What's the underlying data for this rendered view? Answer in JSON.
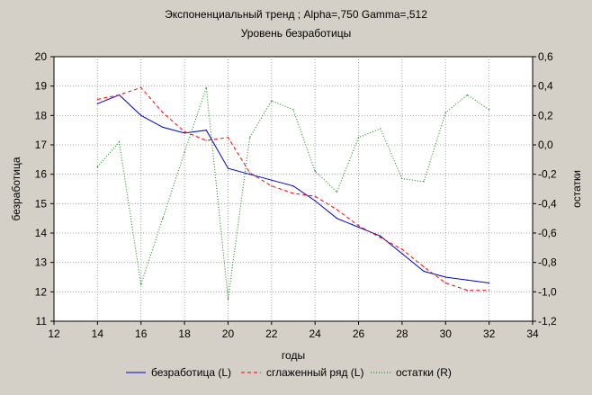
{
  "chart_data": {
    "type": "line",
    "title": "Экспоненциальный тренд ; Alpha=,750 Gamma=,512",
    "subtitle": "Уровень безработицы",
    "xlabel": "годы",
    "ylabel_left": "безработица",
    "ylabel_right": "остатки",
    "xlim": [
      12,
      34
    ],
    "ylim_left": [
      11,
      20
    ],
    "ylim_right": [
      -1.2,
      0.6
    ],
    "x_ticks": [
      "12",
      "14",
      "16",
      "18",
      "20",
      "22",
      "24",
      "26",
      "28",
      "30",
      "32",
      "34"
    ],
    "y_left_ticks": [
      "11",
      "12",
      "13",
      "14",
      "15",
      "16",
      "17",
      "18",
      "19",
      "20"
    ],
    "y_right_ticks": [
      "-1,2",
      "-1,0",
      "-0,8",
      "-0,6",
      "-0,4",
      "-0,2",
      "0,0",
      "0,2",
      "0,4",
      "0,6"
    ],
    "grid": true,
    "legend_position": "bottom",
    "series": [
      {
        "name": "безработица (L)",
        "axis": "left",
        "color": "#0000cc",
        "style": "solid",
        "x": [
          14,
          15,
          16,
          17,
          18,
          19,
          20,
          21,
          22,
          23,
          24,
          25,
          26,
          27,
          28,
          29,
          30,
          31,
          32
        ],
        "y": [
          18.4,
          18.7,
          18.0,
          17.6,
          17.4,
          17.5,
          16.2,
          16.0,
          15.8,
          15.6,
          15.1,
          14.5,
          14.2,
          13.9,
          13.3,
          12.7,
          12.5,
          12.4,
          12.3
        ]
      },
      {
        "name": "сглаженный ряд (L)",
        "axis": "left",
        "color": "#ff0000",
        "style": "dashed",
        "x": [
          14,
          15,
          16,
          17,
          18,
          19,
          20,
          21,
          22,
          23,
          24,
          25,
          26,
          27,
          28,
          29,
          30,
          31,
          32
        ],
        "y": [
          18.55,
          18.7,
          18.95,
          18.1,
          17.45,
          17.15,
          17.25,
          16.05,
          15.6,
          15.35,
          15.25,
          14.8,
          14.25,
          13.85,
          13.45,
          12.85,
          12.3,
          12.05,
          12.05
        ]
      },
      {
        "name": "остатки (R)",
        "axis": "right",
        "color": "#008000",
        "style": "dotted",
        "x": [
          14,
          15,
          16,
          17,
          18,
          19,
          20,
          21,
          22,
          23,
          24,
          25,
          26,
          27,
          28,
          29,
          30,
          31,
          32
        ],
        "y": [
          -0.15,
          0.02,
          -0.95,
          -0.5,
          -0.05,
          0.39,
          -1.05,
          0.05,
          0.3,
          0.24,
          -0.18,
          -0.32,
          0.05,
          0.11,
          -0.23,
          -0.25,
          0.22,
          0.34,
          0.24
        ]
      }
    ]
  }
}
